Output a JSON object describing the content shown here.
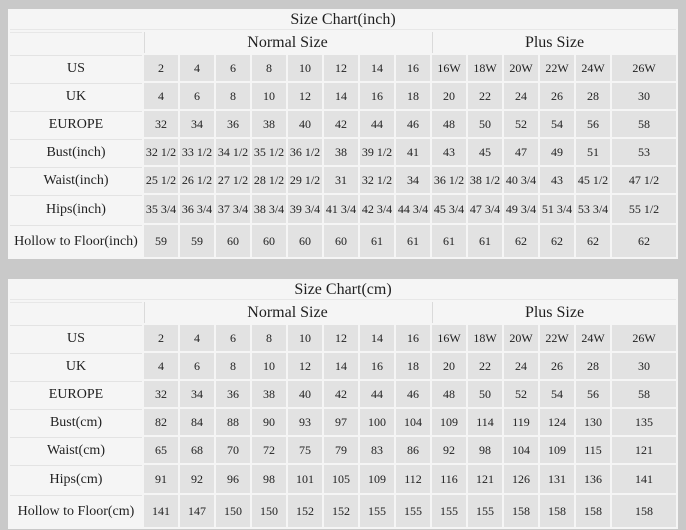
{
  "page": {
    "background": "#c9c9c9",
    "table_background": "#f5f5f5",
    "data_cell_background": "#e2e2e2",
    "label_separator_color": "#e3e3e3",
    "text_color": "#1f1f1f"
  },
  "chart_data": [
    {
      "type": "table",
      "title": "Size Chart(inch)",
      "section_headers": {
        "normal": "Normal Size",
        "plus": "Plus Size"
      },
      "rows": [
        {
          "label": "US",
          "normal": [
            "2",
            "4",
            "6",
            "8",
            "10",
            "12",
            "14",
            "16"
          ],
          "plus": [
            "16W",
            "18W",
            "20W",
            "22W",
            "24W",
            "26W"
          ]
        },
        {
          "label": "UK",
          "normal": [
            "4",
            "6",
            "8",
            "10",
            "12",
            "14",
            "16",
            "18"
          ],
          "plus": [
            "20",
            "22",
            "24",
            "26",
            "28",
            "30"
          ]
        },
        {
          "label": "EUROPE",
          "normal": [
            "32",
            "34",
            "36",
            "38",
            "40",
            "42",
            "44",
            "46"
          ],
          "plus": [
            "48",
            "50",
            "52",
            "54",
            "56",
            "58"
          ]
        },
        {
          "label": "Bust(inch)",
          "normal": [
            "32 1/2",
            "33 1/2",
            "34 1/2",
            "35 1/2",
            "36 1/2",
            "38",
            "39 1/2",
            "41"
          ],
          "plus": [
            "43",
            "45",
            "47",
            "49",
            "51",
            "53"
          ]
        },
        {
          "label": "Waist(inch)",
          "normal": [
            "25 1/2",
            "26 1/2",
            "27 1/2",
            "28 1/2",
            "29 1/2",
            "31",
            "32 1/2",
            "34"
          ],
          "plus": [
            "36 1/2",
            "38 1/2",
            "40 3/4",
            "43",
            "45 1/2",
            "47 1/2"
          ]
        },
        {
          "label": "Hips(inch)",
          "normal": [
            "35 3/4",
            "36 3/4",
            "37 3/4",
            "38 3/4",
            "39 3/4",
            "41 3/4",
            "42 3/4",
            "44 3/4"
          ],
          "plus": [
            "45 3/4",
            "47 3/4",
            "49 3/4",
            "51 3/4",
            "53 3/4",
            "55 1/2"
          ]
        },
        {
          "label": "Hollow to Floor(inch)",
          "normal": [
            "59",
            "59",
            "60",
            "60",
            "60",
            "60",
            "61",
            "61"
          ],
          "plus": [
            "61",
            "61",
            "62",
            "62",
            "62",
            "62"
          ]
        }
      ]
    },
    {
      "type": "table",
      "title": "Size Chart(cm)",
      "section_headers": {
        "normal": "Normal Size",
        "plus": "Plus Size"
      },
      "rows": [
        {
          "label": "US",
          "normal": [
            "2",
            "4",
            "6",
            "8",
            "10",
            "12",
            "14",
            "16"
          ],
          "plus": [
            "16W",
            "18W",
            "20W",
            "22W",
            "24W",
            "26W"
          ]
        },
        {
          "label": "UK",
          "normal": [
            "4",
            "6",
            "8",
            "10",
            "12",
            "14",
            "16",
            "18"
          ],
          "plus": [
            "20",
            "22",
            "24",
            "26",
            "28",
            "30"
          ]
        },
        {
          "label": "EUROPE",
          "normal": [
            "32",
            "34",
            "36",
            "38",
            "40",
            "42",
            "44",
            "46"
          ],
          "plus": [
            "48",
            "50",
            "52",
            "54",
            "56",
            "58"
          ]
        },
        {
          "label": "Bust(cm)",
          "normal": [
            "82",
            "84",
            "88",
            "90",
            "93",
            "97",
            "100",
            "104"
          ],
          "plus": [
            "109",
            "114",
            "119",
            "124",
            "130",
            "135"
          ]
        },
        {
          "label": "Waist(cm)",
          "normal": [
            "65",
            "68",
            "70",
            "72",
            "75",
            "79",
            "83",
            "86"
          ],
          "plus": [
            "92",
            "98",
            "104",
            "109",
            "115",
            "121"
          ]
        },
        {
          "label": "Hips(cm)",
          "normal": [
            "91",
            "92",
            "96",
            "98",
            "101",
            "105",
            "109",
            "112"
          ],
          "plus": [
            "116",
            "121",
            "126",
            "131",
            "136",
            "141"
          ]
        },
        {
          "label": "Hollow to Floor(cm)",
          "normal": [
            "141",
            "147",
            "150",
            "150",
            "152",
            "152",
            "155",
            "155"
          ],
          "plus": [
            "155",
            "155",
            "158",
            "158",
            "158",
            "158"
          ]
        }
      ]
    }
  ]
}
